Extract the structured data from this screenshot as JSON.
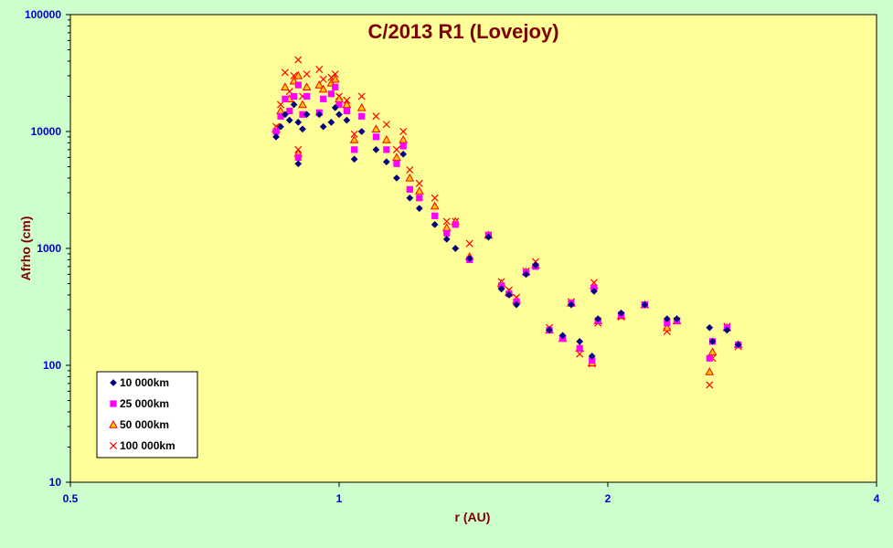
{
  "chart_data": {
    "type": "scatter",
    "title": "C/2013 R1 (Lovejoy)",
    "xlabel": "r (AU)",
    "ylabel": "Afrho (cm)",
    "x_scale": "log",
    "y_scale": "log",
    "xlim": [
      0.5,
      4
    ],
    "ylim": [
      10,
      100000
    ],
    "x_ticks": [
      "0.5",
      "1",
      "2",
      "4"
    ],
    "y_ticks": [
      "10",
      "100",
      "1000",
      "10000",
      "100000"
    ],
    "legend_position": "bottom-left",
    "grid": false,
    "colors": {
      "chart_background": "#ccffcc",
      "plot_background": "#ffff99",
      "title": "#800000",
      "tick_labels": "#0000cc"
    },
    "series": [
      {
        "name": "10 000km",
        "marker": "diamond",
        "color": "#000080",
        "points": [
          [
            0.85,
            9000
          ],
          [
            0.86,
            11000
          ],
          [
            0.87,
            14000
          ],
          [
            0.88,
            12500
          ],
          [
            0.89,
            17000
          ],
          [
            0.9,
            12000
          ],
          [
            0.9,
            5300
          ],
          [
            0.91,
            10500
          ],
          [
            0.92,
            14000
          ],
          [
            0.95,
            14000
          ],
          [
            0.96,
            11000
          ],
          [
            0.98,
            12000
          ],
          [
            0.99,
            16000
          ],
          [
            1.0,
            14000
          ],
          [
            1.02,
            12500
          ],
          [
            1.04,
            5800
          ],
          [
            1.06,
            10000
          ],
          [
            1.1,
            7000
          ],
          [
            1.13,
            5500
          ],
          [
            1.16,
            4000
          ],
          [
            1.18,
            6400
          ],
          [
            1.2,
            2700
          ],
          [
            1.23,
            2200
          ],
          [
            1.28,
            1600
          ],
          [
            1.32,
            1200
          ],
          [
            1.35,
            1000
          ],
          [
            1.4,
            820
          ],
          [
            1.47,
            1250
          ],
          [
            1.52,
            450
          ],
          [
            1.55,
            400
          ],
          [
            1.58,
            330
          ],
          [
            1.62,
            600
          ],
          [
            1.66,
            720
          ],
          [
            1.72,
            200
          ],
          [
            1.78,
            180
          ],
          [
            1.82,
            330
          ],
          [
            1.86,
            160
          ],
          [
            1.92,
            120
          ],
          [
            1.93,
            430
          ],
          [
            1.95,
            250
          ],
          [
            2.07,
            280
          ],
          [
            2.2,
            330
          ],
          [
            2.33,
            250
          ],
          [
            2.39,
            250
          ],
          [
            2.6,
            210
          ],
          [
            2.62,
            160
          ],
          [
            2.72,
            200
          ],
          [
            2.8,
            150
          ]
        ]
      },
      {
        "name": "25 000km",
        "marker": "square",
        "color": "#ff00ff",
        "points": [
          [
            0.85,
            10000
          ],
          [
            0.86,
            13500
          ],
          [
            0.87,
            19000
          ],
          [
            0.88,
            15000
          ],
          [
            0.89,
            20000
          ],
          [
            0.9,
            25000
          ],
          [
            0.9,
            6000
          ],
          [
            0.91,
            14000
          ],
          [
            0.92,
            20000
          ],
          [
            0.95,
            14500
          ],
          [
            0.96,
            19000
          ],
          [
            0.98,
            21000
          ],
          [
            0.99,
            24000
          ],
          [
            1.0,
            17000
          ],
          [
            1.02,
            15000
          ],
          [
            1.04,
            7000
          ],
          [
            1.06,
            13500
          ],
          [
            1.1,
            9000
          ],
          [
            1.13,
            7000
          ],
          [
            1.16,
            5300
          ],
          [
            1.18,
            7500
          ],
          [
            1.2,
            3200
          ],
          [
            1.23,
            2700
          ],
          [
            1.28,
            1900
          ],
          [
            1.32,
            1350
          ],
          [
            1.35,
            1600
          ],
          [
            1.4,
            800
          ],
          [
            1.47,
            1300
          ],
          [
            1.52,
            480
          ],
          [
            1.55,
            410
          ],
          [
            1.58,
            350
          ],
          [
            1.62,
            620
          ],
          [
            1.66,
            700
          ],
          [
            1.72,
            200
          ],
          [
            1.78,
            170
          ],
          [
            1.82,
            340
          ],
          [
            1.86,
            140
          ],
          [
            1.92,
            110
          ],
          [
            1.93,
            460
          ],
          [
            1.95,
            240
          ],
          [
            2.07,
            270
          ],
          [
            2.2,
            330
          ],
          [
            2.33,
            230
          ],
          [
            2.39,
            240
          ],
          [
            2.6,
            115
          ],
          [
            2.62,
            160
          ],
          [
            2.72,
            210
          ],
          [
            2.8,
            150
          ]
        ]
      },
      {
        "name": "50 000km",
        "marker": "triangle",
        "color": "#ff0000",
        "points": [
          [
            0.85,
            10500
          ],
          [
            0.86,
            15000
          ],
          [
            0.87,
            24000
          ],
          [
            0.88,
            19000
          ],
          [
            0.89,
            27000
          ],
          [
            0.9,
            30000
          ],
          [
            0.9,
            6500
          ],
          [
            0.91,
            17000
          ],
          [
            0.92,
            24000
          ],
          [
            0.95,
            25000
          ],
          [
            0.96,
            23000
          ],
          [
            0.98,
            26000
          ],
          [
            0.99,
            28000
          ],
          [
            1.0,
            19000
          ],
          [
            1.02,
            17000
          ],
          [
            1.04,
            8500
          ],
          [
            1.06,
            16000
          ],
          [
            1.1,
            10500
          ],
          [
            1.13,
            8500
          ],
          [
            1.16,
            6000
          ],
          [
            1.18,
            8500
          ],
          [
            1.2,
            4000
          ],
          [
            1.23,
            3100
          ],
          [
            1.28,
            2300
          ],
          [
            1.32,
            1500
          ],
          [
            1.35,
            1700
          ],
          [
            1.4,
            850
          ],
          [
            1.47,
            1300
          ],
          [
            1.52,
            500
          ],
          [
            1.55,
            420
          ],
          [
            1.58,
            360
          ],
          [
            1.62,
            630
          ],
          [
            1.66,
            720
          ],
          [
            1.72,
            200
          ],
          [
            1.78,
            170
          ],
          [
            1.82,
            340
          ],
          [
            1.86,
            140
          ],
          [
            1.92,
            105
          ],
          [
            1.93,
            480
          ],
          [
            1.95,
            240
          ],
          [
            2.07,
            265
          ],
          [
            2.2,
            330
          ],
          [
            2.33,
            210
          ],
          [
            2.39,
            240
          ],
          [
            2.6,
            88
          ],
          [
            2.62,
            130
          ],
          [
            2.72,
            210
          ],
          [
            2.8,
            150
          ]
        ]
      },
      {
        "name": "100 000km",
        "marker": "cross",
        "color": "#ff0000",
        "points": [
          [
            0.85,
            11000
          ],
          [
            0.86,
            17000
          ],
          [
            0.87,
            32000
          ],
          [
            0.88,
            22000
          ],
          [
            0.89,
            30000
          ],
          [
            0.9,
            41000
          ],
          [
            0.9,
            7000
          ],
          [
            0.91,
            20000
          ],
          [
            0.92,
            31000
          ],
          [
            0.95,
            34000
          ],
          [
            0.96,
            28000
          ],
          [
            0.98,
            29000
          ],
          [
            0.99,
            31000
          ],
          [
            1.0,
            20000
          ],
          [
            1.02,
            18500
          ],
          [
            1.04,
            9500
          ],
          [
            1.06,
            20000
          ],
          [
            1.1,
            13500
          ],
          [
            1.13,
            11500
          ],
          [
            1.16,
            7000
          ],
          [
            1.18,
            10000
          ],
          [
            1.2,
            4700
          ],
          [
            1.23,
            3600
          ],
          [
            1.28,
            2700
          ],
          [
            1.32,
            1700
          ],
          [
            1.35,
            1700
          ],
          [
            1.4,
            1100
          ],
          [
            1.47,
            1300
          ],
          [
            1.52,
            520
          ],
          [
            1.55,
            440
          ],
          [
            1.58,
            380
          ],
          [
            1.62,
            640
          ],
          [
            1.66,
            770
          ],
          [
            1.72,
            210
          ],
          [
            1.78,
            170
          ],
          [
            1.82,
            350
          ],
          [
            1.86,
            125
          ],
          [
            1.92,
            103
          ],
          [
            1.93,
            510
          ],
          [
            1.95,
            230
          ],
          [
            2.07,
            260
          ],
          [
            2.2,
            330
          ],
          [
            2.33,
            195
          ],
          [
            2.39,
            240
          ],
          [
            2.6,
            68
          ],
          [
            2.62,
            115
          ],
          [
            2.72,
            215
          ],
          [
            2.8,
            145
          ]
        ]
      }
    ]
  }
}
